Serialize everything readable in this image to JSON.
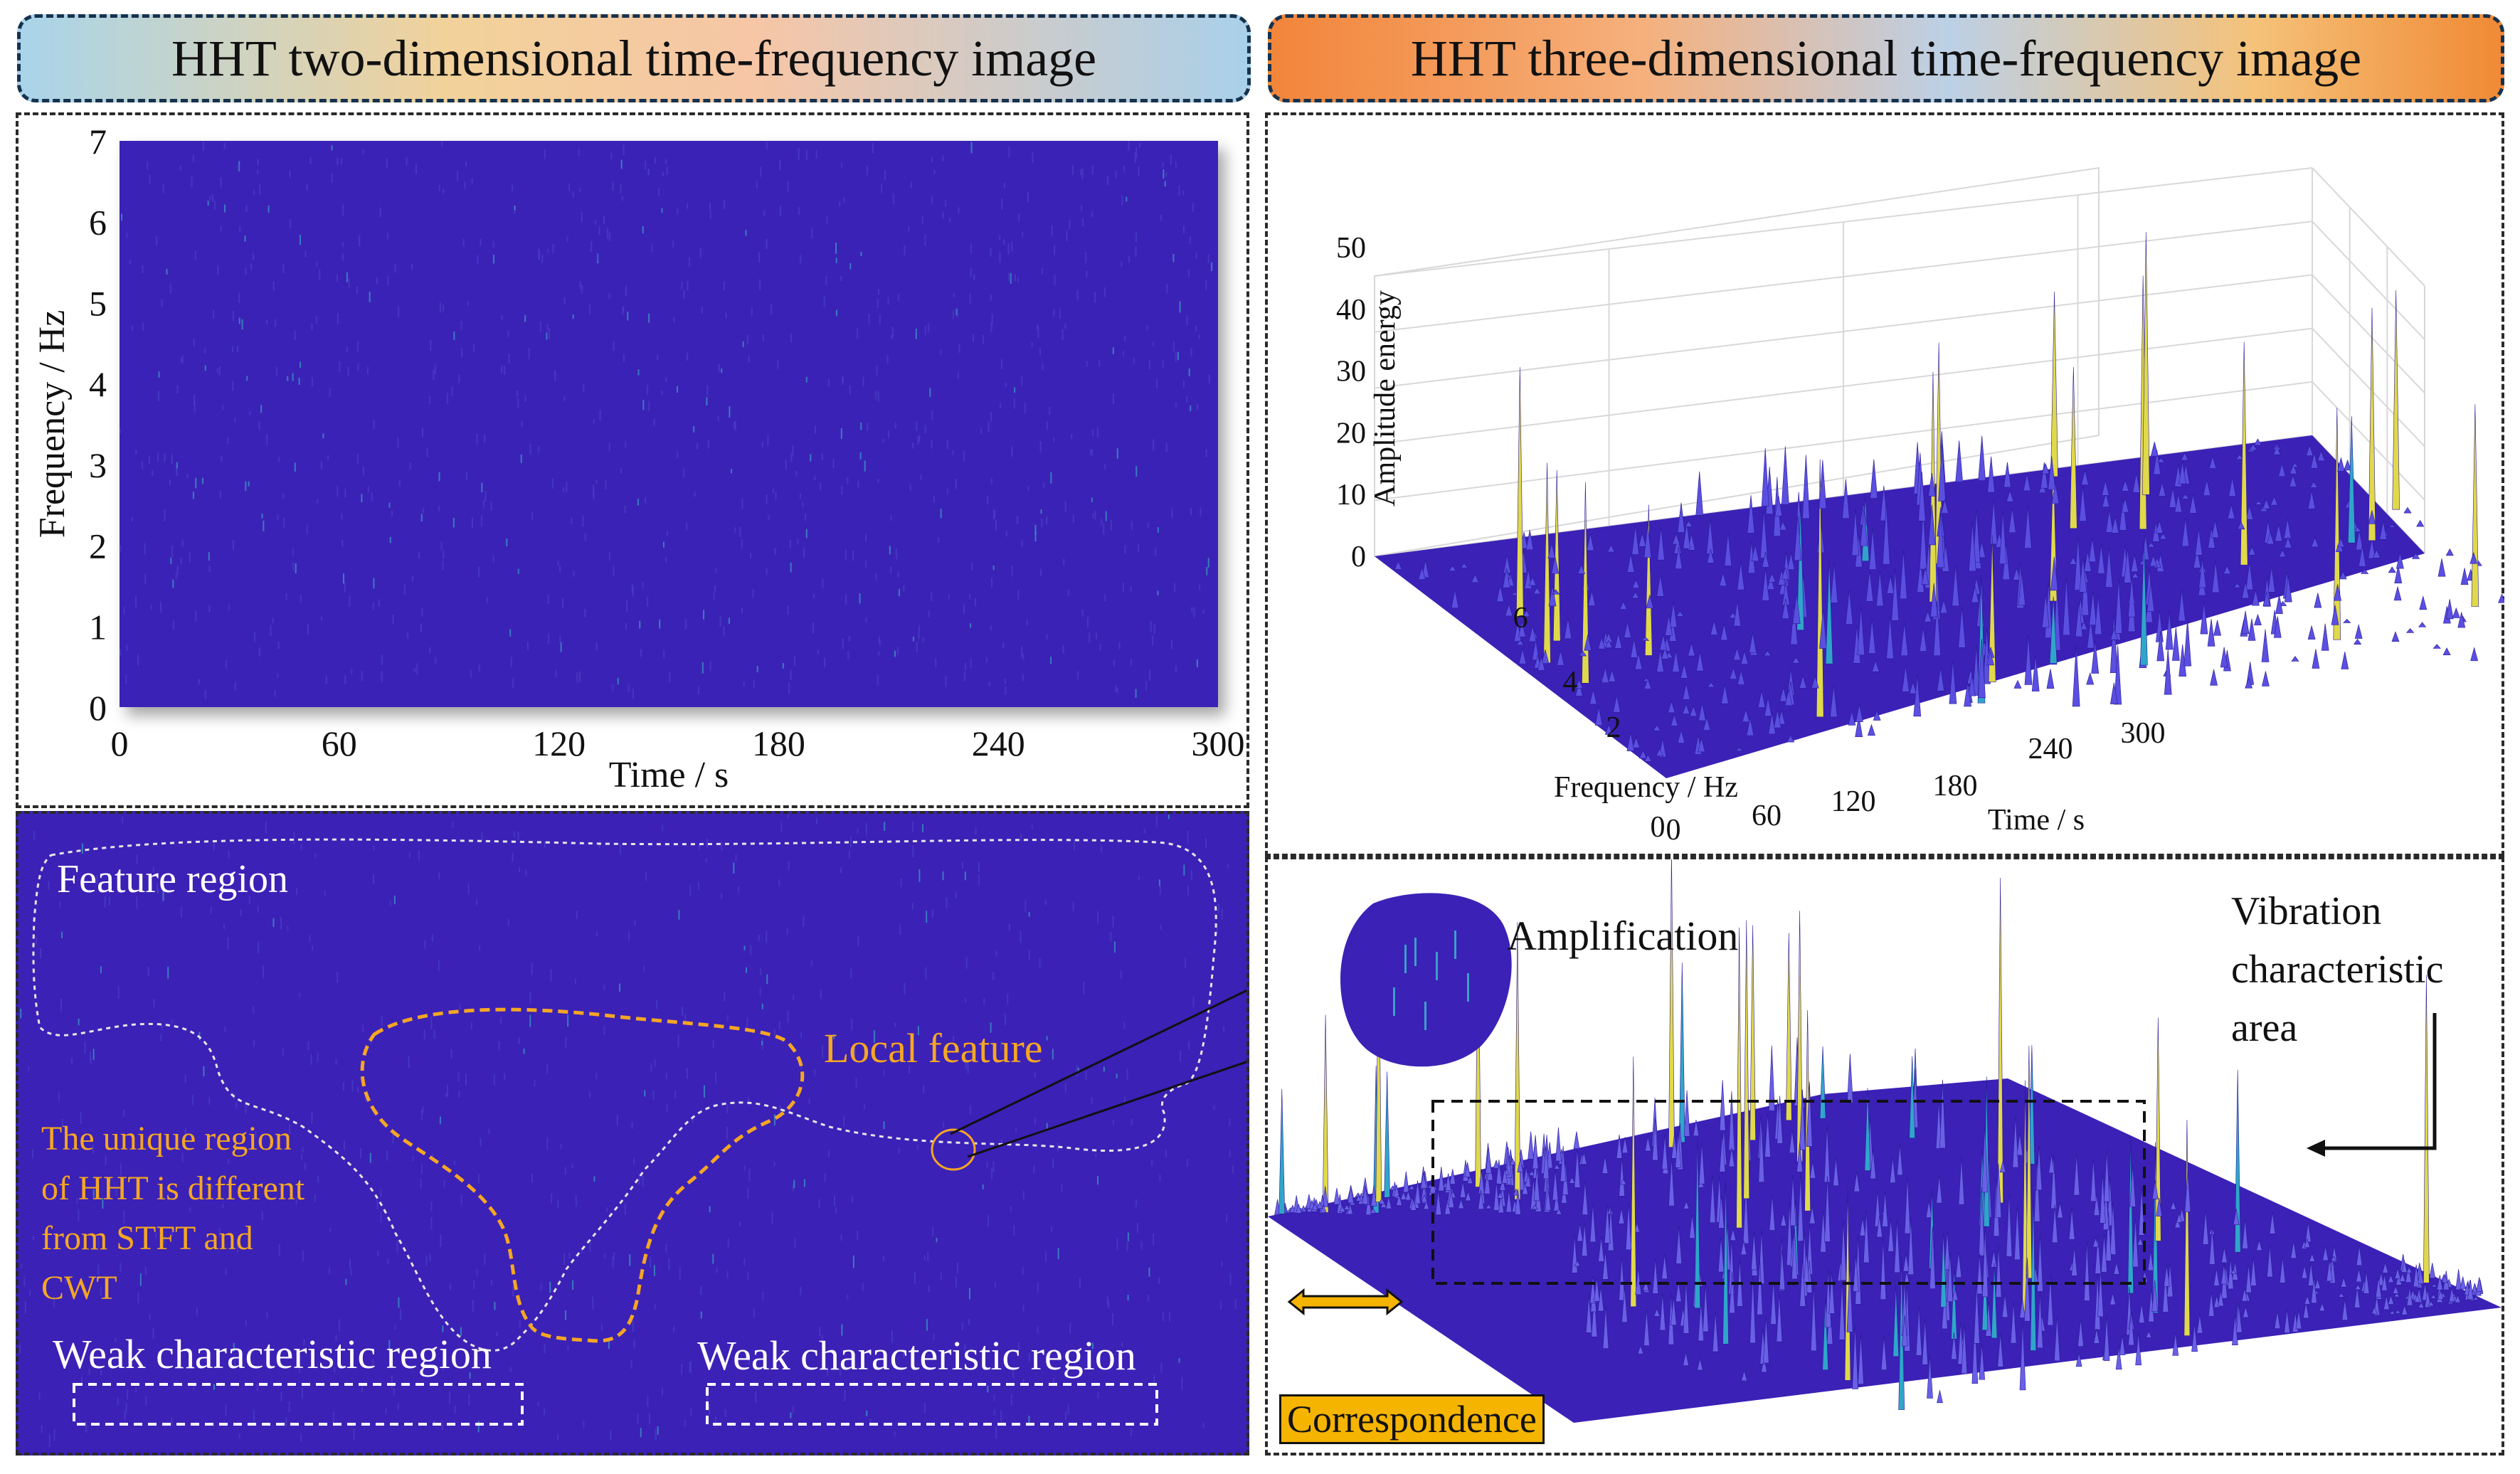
{
  "titles": {
    "left": "HHT two-dimensional time-frequency image",
    "right": "HHT three-dimensional time-frequency image"
  },
  "colors": {
    "spectrogram_bg": "#3b21b6",
    "accent_orange": "#f5a623",
    "title_border": "#16324f"
  },
  "chart_data": [
    {
      "type": "heatmap",
      "title": "HHT two-dimensional time-frequency image",
      "xlabel": "Time / s",
      "ylabel": "Frequency / Hz",
      "xlim": [
        0,
        300
      ],
      "ylim": [
        0,
        7
      ],
      "xticks": [
        0,
        60,
        120,
        180,
        240,
        300
      ],
      "yticks": [
        0,
        1,
        2,
        3,
        4,
        5,
        6,
        7
      ],
      "xtick_labels": [
        "0",
        "60",
        "120",
        "180",
        "240",
        "300"
      ],
      "ytick_labels": [
        "0",
        "1",
        "2",
        "3",
        "4",
        "5",
        "6",
        "7"
      ]
    },
    {
      "type": "surface",
      "title": "HHT three-dimensional time-frequency image",
      "xlabel": "Time / s",
      "ylabel": "Frequency / Hz",
      "zlabel": "Amplitude energy",
      "xlim": [
        0,
        300
      ],
      "ylim": [
        0,
        7
      ],
      "zlim": [
        0,
        50
      ],
      "xtick_labels": [
        "0",
        "60",
        "120",
        "180",
        "240",
        "300"
      ],
      "ytick_labels": [
        "0",
        "2",
        "4",
        "6"
      ],
      "ztick_labels": [
        "0",
        "10",
        "20",
        "30",
        "40",
        "50"
      ]
    }
  ],
  "annotations": {
    "feature_region": "Feature region",
    "local_feature": "Local feature",
    "unique_region": [
      "The unique region",
      "of HHT is different",
      "from STFT and",
      "CWT"
    ],
    "weak_left": "Weak characteristic region",
    "weak_right": "Weak characteristic region",
    "amplification": "Amplification",
    "vibration": [
      "Vibration",
      "characteristic",
      "area"
    ],
    "correspondence": "Correspondence"
  }
}
